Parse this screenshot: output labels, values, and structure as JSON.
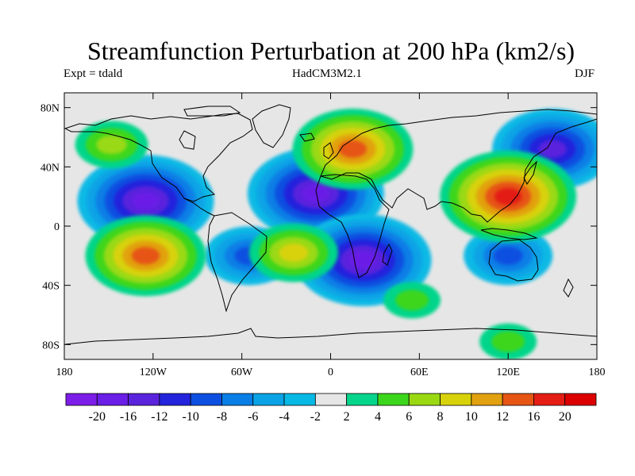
{
  "title": "Streamfunction Perturbation at 200 hPa (km2/s)",
  "subtitle": {
    "left": "Expt = tdald",
    "center": "HadCM3M2.1",
    "right": "DJF"
  },
  "lat_labels": [
    "80N",
    "40N",
    "0",
    "40S",
    "80S"
  ],
  "lat_values": [
    80,
    40,
    0,
    -40,
    -80
  ],
  "lon_labels": [
    "180",
    "120W",
    "60W",
    "0",
    "60E",
    "120E",
    "180"
  ],
  "lon_values": [
    -180,
    -120,
    -60,
    0,
    60,
    120,
    180
  ],
  "colorbar": {
    "labels": [
      "-20",
      "-16",
      "-12",
      "-10",
      "-8",
      "-6",
      "-4",
      "-2",
      "2",
      "4",
      "6",
      "8",
      "10",
      "12",
      "16",
      "20"
    ],
    "colors": [
      "#7d1ee8",
      "#6a1ee6",
      "#5a23dc",
      "#2324dc",
      "#0d4fe0",
      "#087ee6",
      "#09a3e6",
      "#08b9e5",
      "#e6e6e6",
      "#05d58a",
      "#3cd61c",
      "#9ad912",
      "#d8d20a",
      "#e2a110",
      "#e65514",
      "#e41e14",
      "#dc0000"
    ]
  },
  "features": [
    {
      "name": "neg-pacific-north",
      "lon": -125,
      "lat": 17,
      "value": -20
    },
    {
      "name": "neg-atlantic-north",
      "lon": -10,
      "lat": 22,
      "value": -20
    },
    {
      "name": "neg-africa-south",
      "lon": 22,
      "lat": -23,
      "value": -20
    },
    {
      "name": "neg-siberia-pacific",
      "lon": 150,
      "lat": 52,
      "value": -16
    },
    {
      "name": "neg-australia",
      "lon": 120,
      "lat": -20,
      "value": -10
    },
    {
      "name": "neg-brazil",
      "lon": -55,
      "lat": -20,
      "value": -10
    },
    {
      "name": "pos-east-asia",
      "lon": 120,
      "lat": 20,
      "value": 20
    },
    {
      "name": "pos-europe",
      "lon": 15,
      "lat": 52,
      "value": 16
    },
    {
      "name": "pos-south-pacific",
      "lon": -125,
      "lat": -20,
      "value": 16
    },
    {
      "name": "pos-alaska",
      "lon": -148,
      "lat": 55,
      "value": 6
    },
    {
      "name": "pos-south-atlantic",
      "lon": -25,
      "lat": -18,
      "value": 8
    },
    {
      "name": "pos-southern-ocean-indian",
      "lon": 55,
      "lat": -50,
      "value": 4
    },
    {
      "name": "pos-antarctic-pacific",
      "lon": 120,
      "lat": -78,
      "value": 4
    }
  ]
}
